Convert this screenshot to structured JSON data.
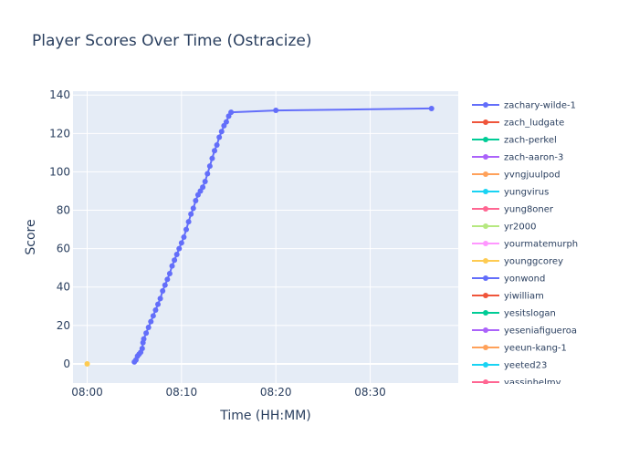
{
  "chart_data": {
    "type": "line",
    "title": "Player Scores Over Time (Ostracize)",
    "xlabel": "Time (HH:MM)",
    "ylabel": "Score",
    "xlim": [
      "07:58:30",
      "08:39:20"
    ],
    "ylim": [
      -10,
      142
    ],
    "x_ticks": [
      "08:00",
      "08:10",
      "08:20",
      "08:30"
    ],
    "y_ticks": [
      0,
      20,
      40,
      60,
      80,
      100,
      120,
      140
    ],
    "grid": true,
    "legend_position": "right",
    "plot_background": "#e5ecf6",
    "series": [
      {
        "name": "zachary-wilde-1",
        "color": "#636efa",
        "points": [
          [
            "08:05:00",
            1
          ],
          [
            "08:05:10",
            2
          ],
          [
            "08:05:20",
            4
          ],
          [
            "08:05:30",
            5
          ],
          [
            "08:05:40",
            6
          ],
          [
            "08:05:50",
            8
          ],
          [
            "08:05:55",
            11
          ],
          [
            "08:06:00",
            13
          ],
          [
            "08:06:15",
            16
          ],
          [
            "08:06:30",
            19
          ],
          [
            "08:06:45",
            22
          ],
          [
            "08:07:00",
            25
          ],
          [
            "08:07:15",
            28
          ],
          [
            "08:07:30",
            31
          ],
          [
            "08:07:45",
            34
          ],
          [
            "08:08:00",
            38
          ],
          [
            "08:08:15",
            41
          ],
          [
            "08:08:30",
            44
          ],
          [
            "08:08:45",
            47
          ],
          [
            "08:09:00",
            51
          ],
          [
            "08:09:15",
            54
          ],
          [
            "08:09:30",
            57
          ],
          [
            "08:09:45",
            60
          ],
          [
            "08:10:00",
            63
          ],
          [
            "08:10:15",
            66
          ],
          [
            "08:10:30",
            70
          ],
          [
            "08:10:45",
            74
          ],
          [
            "08:11:00",
            78
          ],
          [
            "08:11:15",
            81
          ],
          [
            "08:11:30",
            85
          ],
          [
            "08:11:45",
            88
          ],
          [
            "08:12:00",
            90
          ],
          [
            "08:12:15",
            92
          ],
          [
            "08:12:30",
            95
          ],
          [
            "08:12:45",
            99
          ],
          [
            "08:13:00",
            103
          ],
          [
            "08:13:15",
            107
          ],
          [
            "08:13:30",
            111
          ],
          [
            "08:13:45",
            114
          ],
          [
            "08:14:00",
            118
          ],
          [
            "08:14:15",
            121
          ],
          [
            "08:14:30",
            124
          ],
          [
            "08:14:45",
            126
          ],
          [
            "08:15:00",
            129
          ],
          [
            "08:15:15",
            131
          ],
          [
            "08:20:00",
            132
          ],
          [
            "08:36:30",
            133
          ]
        ]
      },
      {
        "name": "zach_ludgate",
        "color": "#ef553b",
        "points": []
      },
      {
        "name": "zach-perkel",
        "color": "#00cc96",
        "points": []
      },
      {
        "name": "zach-aaron-3",
        "color": "#ab63fa",
        "points": []
      },
      {
        "name": "yvngjuulpod",
        "color": "#ffa15a",
        "points": []
      },
      {
        "name": "yungvirus",
        "color": "#19d3f3",
        "points": []
      },
      {
        "name": "yung8oner",
        "color": "#ff6692",
        "points": []
      },
      {
        "name": "yr2000",
        "color": "#b6e880",
        "points": []
      },
      {
        "name": "yourmatemurph",
        "color": "#ff97ff",
        "points": []
      },
      {
        "name": "younggcorey",
        "color": "#fecb52",
        "points": [
          [
            "08:00:00",
            0
          ]
        ]
      },
      {
        "name": "yonwond",
        "color": "#636efa",
        "points": []
      },
      {
        "name": "yiwilliam",
        "color": "#ef553b",
        "points": []
      },
      {
        "name": "yesitslogan",
        "color": "#00cc96",
        "points": []
      },
      {
        "name": "yeseniafigueroa",
        "color": "#ab63fa",
        "points": []
      },
      {
        "name": "yeeun-kang-1",
        "color": "#ffa15a",
        "points": []
      },
      {
        "name": "yeeted23",
        "color": "#19d3f3",
        "points": []
      },
      {
        "name": "yassinhelmy",
        "color": "#ff6692",
        "points": []
      }
    ]
  }
}
